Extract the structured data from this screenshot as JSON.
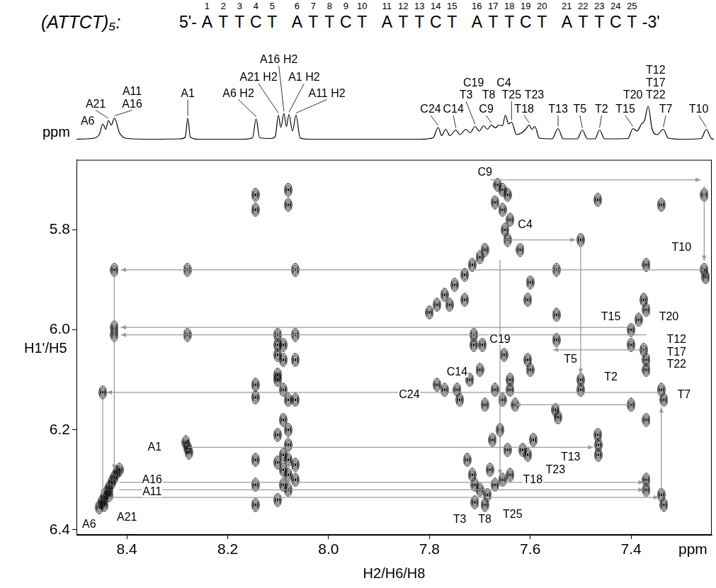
{
  "chart_data": [
    {
      "type": "line",
      "title": "(ATTCT)₅:",
      "sequence": {
        "prefix": "5'-",
        "groups": [
          "ATTCT",
          "ATTCT",
          "ATTCT",
          "ATTCT",
          "ATTCT"
        ],
        "suffix": "-3'",
        "numbers": [
          1,
          2,
          3,
          4,
          5,
          6,
          7,
          8,
          9,
          10,
          11,
          12,
          13,
          14,
          15,
          16,
          17,
          18,
          19,
          20,
          21,
          22,
          23,
          24,
          25
        ]
      },
      "xlabel": "ppm",
      "x": [
        8.5,
        8.47,
        8.455,
        8.448,
        8.442,
        8.437,
        8.431,
        8.425,
        8.415,
        8.4,
        8.35,
        8.295,
        8.285,
        8.28,
        8.275,
        8.26,
        8.17,
        8.152,
        8.145,
        8.138,
        8.115,
        8.107,
        8.101,
        8.096,
        8.09,
        8.085,
        8.08,
        8.073,
        8.066,
        8.058,
        8.04,
        7.82,
        7.795,
        7.785,
        7.778,
        7.77,
        7.762,
        7.75,
        7.742,
        7.73,
        7.722,
        7.712,
        7.704,
        7.695,
        7.688,
        7.68,
        7.672,
        7.665,
        7.658,
        7.652,
        7.646,
        7.64,
        7.63,
        7.62,
        7.612,
        7.605,
        7.6,
        7.594,
        7.585,
        7.56,
        7.548,
        7.538,
        7.51,
        7.5,
        7.49,
        7.475,
        7.466,
        7.456,
        7.41,
        7.4,
        7.392,
        7.383,
        7.377,
        7.37,
        7.362,
        7.352,
        7.34,
        7.33,
        7.3,
        7.265,
        7.255,
        7.245,
        7.24
      ],
      "values": [
        0.02,
        0.04,
        0.15,
        0.45,
        0.3,
        0.55,
        0.42,
        0.62,
        0.2,
        0.04,
        0.02,
        0.03,
        0.08,
        0.62,
        0.08,
        0.02,
        0.02,
        0.06,
        0.6,
        0.06,
        0.04,
        0.1,
        0.7,
        0.35,
        0.75,
        0.38,
        0.72,
        0.25,
        0.7,
        0.06,
        0.02,
        0.02,
        0.06,
        0.35,
        0.12,
        0.3,
        0.12,
        0.28,
        0.15,
        0.3,
        0.2,
        0.38,
        0.25,
        0.4,
        0.3,
        0.42,
        0.34,
        0.42,
        0.4,
        0.7,
        0.45,
        0.5,
        0.15,
        0.2,
        0.3,
        0.42,
        0.3,
        0.38,
        0.05,
        0.03,
        0.32,
        0.03,
        0.03,
        0.28,
        0.03,
        0.03,
        0.28,
        0.03,
        0.04,
        0.32,
        0.25,
        0.45,
        0.55,
        0.95,
        0.3,
        0.15,
        0.3,
        0.05,
        0.02,
        0.04,
        0.3,
        0.04,
        0.02
      ],
      "color": "#000000",
      "xlim": [
        8.5,
        7.24
      ],
      "ylim": [
        -0.05,
        2.75
      ],
      "tick_labels": false,
      "grid": false,
      "annotations": [
        {
          "text": "A6",
          "x": 8.478,
          "y": 0.52,
          "peak": 8.448
        },
        {
          "text": "A21",
          "x": 8.462,
          "y": 1.0,
          "peak": 8.437
        },
        {
          "text": "A16",
          "x": 8.39,
          "y": 1.0,
          "peak": 8.425
        },
        {
          "text": "A11",
          "x": 8.39,
          "y": 1.35,
          "peak": 8.425
        },
        {
          "text": "A1",
          "x": 8.28,
          "y": 1.3,
          "peak": 8.28
        },
        {
          "text": "A6 H2",
          "x": 8.18,
          "y": 1.3,
          "peak": 8.145
        },
        {
          "text": "A21 H2",
          "x": 8.14,
          "y": 1.75,
          "peak": 8.101
        },
        {
          "text": "A16 H2",
          "x": 8.1,
          "y": 2.25,
          "peak": 8.09
        },
        {
          "text": "A1 H2",
          "x": 8.05,
          "y": 1.75,
          "peak": 8.08
        },
        {
          "text": "A11 H2",
          "x": 8.005,
          "y": 1.3,
          "peak": 8.066
        },
        {
          "text": "C24",
          "x": 7.8,
          "y": 0.85,
          "peak": 7.785
        },
        {
          "text": "C14",
          "x": 7.755,
          "y": 0.85,
          "peak": 7.75
        },
        {
          "text": "C19",
          "x": 7.715,
          "y": 1.6,
          "peak": 7.712
        },
        {
          "text": "T3",
          "x": 7.73,
          "y": 1.25,
          "peak": 7.712
        },
        {
          "text": "T8",
          "x": 7.685,
          "y": 1.25,
          "peak": 7.695
        },
        {
          "text": "C9",
          "x": 7.69,
          "y": 0.85,
          "peak": 7.68
        },
        {
          "text": "C4",
          "x": 7.655,
          "y": 1.6,
          "peak": 7.652
        },
        {
          "text": "T25",
          "x": 7.64,
          "y": 1.25,
          "peak": 7.64
        },
        {
          "text": "T18",
          "x": 7.615,
          "y": 0.85,
          "peak": 7.605
        },
        {
          "text": "T23",
          "x": 7.595,
          "y": 1.25,
          "peak": 7.594
        },
        {
          "text": "T13",
          "x": 7.548,
          "y": 0.85,
          "peak": 7.548
        },
        {
          "text": "T5",
          "x": 7.505,
          "y": 0.85,
          "peak": 7.5
        },
        {
          "text": "T2",
          "x": 7.462,
          "y": 0.85,
          "peak": 7.466
        },
        {
          "text": "T15",
          "x": 7.415,
          "y": 0.85,
          "peak": 7.4
        },
        {
          "text": "T20",
          "x": 7.4,
          "y": 1.25,
          "peak": 7.383
        },
        {
          "text": "T22",
          "x": 7.355,
          "y": 1.25,
          "peak": 7.37
        },
        {
          "text": "T17",
          "x": 7.355,
          "y": 1.6,
          "peak": 7.37
        },
        {
          "text": "T12",
          "x": 7.355,
          "y": 1.95,
          "peak": 7.37
        },
        {
          "text": "T7",
          "x": 7.335,
          "y": 0.85,
          "peak": 7.34
        },
        {
          "text": "T10",
          "x": 7.27,
          "y": 0.85,
          "peak": 7.255
        }
      ]
    },
    {
      "type": "scatter",
      "xlabel": "H2/H6/H8",
      "x_unit": "ppm",
      "ylabel": "H1'/H5",
      "x": [
        8.425,
        8.425,
        8.425,
        8.448,
        8.28,
        8.28,
        8.283,
        8.28,
        8.277,
        8.455,
        8.45,
        8.445,
        8.44,
        8.435,
        8.43,
        8.425,
        8.42,
        8.415,
        8.445,
        8.435,
        8.145,
        8.145,
        8.145,
        8.145,
        8.145,
        8.145,
        8.145,
        8.101,
        8.101,
        8.101,
        8.101,
        8.101,
        8.101,
        8.101,
        8.101,
        8.09,
        8.09,
        8.09,
        8.09,
        8.09,
        8.09,
        8.09,
        8.08,
        8.08,
        8.08,
        8.08,
        8.08,
        8.08,
        8.08,
        8.08,
        8.066,
        8.066,
        8.066,
        8.066,
        8.066,
        8.066,
        7.665,
        7.655,
        7.645,
        7.67,
        7.655,
        7.64,
        7.65,
        7.645,
        7.69,
        7.7,
        7.715,
        7.73,
        7.75,
        7.77,
        7.785,
        7.8,
        7.76,
        7.73,
        7.785,
        7.77,
        7.745,
        7.74,
        7.72,
        7.712,
        7.712,
        7.695,
        7.7,
        7.69,
        7.67,
        7.655,
        7.64,
        7.63,
        7.66,
        7.675,
        7.645,
        7.71,
        7.7,
        7.685,
        7.67,
        7.655,
        7.64,
        7.68,
        7.715,
        7.725,
        7.69,
        7.71,
        7.652,
        7.64,
        7.605,
        7.605,
        7.6,
        7.594,
        7.605,
        7.615,
        7.62,
        7.6,
        7.548,
        7.548,
        7.548,
        7.55,
        7.545,
        7.5,
        7.5,
        7.5,
        7.466,
        7.466,
        7.465,
        7.465,
        7.4,
        7.4,
        7.4,
        7.385,
        7.37,
        7.375,
        7.37,
        7.375,
        7.37,
        7.37,
        7.37,
        7.37,
        7.37,
        7.34,
        7.34,
        7.335,
        7.34,
        7.335,
        7.255,
        7.255,
        7.252
      ],
      "values": [
        5.88,
        5.995,
        6.01,
        6.125,
        5.88,
        6.01,
        6.225,
        6.235,
        6.245,
        6.355,
        6.345,
        6.335,
        6.325,
        6.315,
        6.305,
        6.295,
        6.285,
        6.28,
        6.35,
        6.33,
        5.73,
        5.76,
        6.11,
        6.135,
        6.26,
        6.31,
        6.35,
        6.01,
        6.03,
        6.05,
        6.09,
        6.1,
        6.21,
        6.265,
        6.34,
        6.03,
        6.06,
        6.12,
        6.18,
        6.25,
        6.28,
        6.31,
        5.72,
        5.75,
        6.14,
        6.2,
        6.23,
        6.26,
        6.29,
        6.32,
        5.88,
        6.01,
        6.06,
        6.14,
        6.27,
        6.3,
        5.71,
        5.72,
        5.73,
        5.745,
        5.76,
        5.78,
        5.8,
        5.82,
        5.84,
        5.855,
        5.87,
        5.89,
        5.91,
        5.93,
        5.95,
        5.965,
        5.95,
        5.94,
        6.11,
        6.12,
        6.12,
        6.14,
        6.1,
        6.03,
        6.01,
        6.03,
        6.08,
        6.15,
        6.12,
        6.14,
        6.12,
        6.15,
        6.2,
        6.22,
        6.24,
        6.31,
        6.32,
        6.33,
        6.31,
        6.3,
        6.29,
        6.28,
        6.29,
        6.26,
        6.35,
        6.345,
        6.05,
        6.1,
        5.94,
        6.06,
        6.08,
        6.22,
        6.25,
        6.24,
        5.84,
        5.905,
        5.88,
        5.97,
        6.02,
        6.16,
        6.175,
        5.82,
        6.1,
        6.12,
        5.74,
        6.21,
        6.23,
        6.25,
        6.0,
        6.03,
        6.15,
        5.98,
        5.87,
        5.94,
        5.96,
        6.04,
        6.06,
        6.08,
        6.18,
        6.3,
        6.32,
        5.75,
        6.12,
        6.14,
        6.33,
        6.35,
        5.73,
        5.88,
        5.895
      ],
      "color": "#000000",
      "marker": "contour",
      "xlim": [
        8.5,
        7.24
      ],
      "ylim": [
        6.41,
        5.66
      ],
      "xticks": [
        8.4,
        8.2,
        {
          "value": 8,
          "label": "8.0"
        },
        7.8,
        7.6,
        7.4
      ],
      "yticks": [
        5.8,
        {
          "value": 6,
          "label": "6.0"
        },
        6.2,
        6.4
      ],
      "grid": false,
      "annotations": [
        {
          "text": "C9",
          "x": 7.69,
          "y": 5.685
        },
        {
          "text": "C4",
          "x": 7.61,
          "y": 5.79
        },
        {
          "text": "T10",
          "x": 7.3,
          "y": 5.835
        },
        {
          "text": "T20",
          "x": 7.325,
          "y": 5.975
        },
        {
          "text": "T15",
          "x": 7.44,
          "y": 5.975
        },
        {
          "text": "T12",
          "x": 7.31,
          "y": 6.02
        },
        {
          "text": "T17",
          "x": 7.31,
          "y": 6.045
        },
        {
          "text": "T22",
          "x": 7.31,
          "y": 6.07
        },
        {
          "text": "T5",
          "x": 7.52,
          "y": 6.06
        },
        {
          "text": "T2",
          "x": 7.44,
          "y": 6.095
        },
        {
          "text": "T7",
          "x": 7.295,
          "y": 6.13
        },
        {
          "text": "C19",
          "x": 7.66,
          "y": 6.02
        },
        {
          "text": "C24",
          "x": 7.84,
          "y": 6.13
        },
        {
          "text": "C14",
          "x": 7.745,
          "y": 6.085
        },
        {
          "text": "T13",
          "x": 7.52,
          "y": 6.255
        },
        {
          "text": "T23",
          "x": 7.55,
          "y": 6.28
        },
        {
          "text": "T18",
          "x": 7.595,
          "y": 6.3
        },
        {
          "text": "T25",
          "x": 7.635,
          "y": 6.37
        },
        {
          "text": "T3",
          "x": 7.74,
          "y": 6.38
        },
        {
          "text": "T8",
          "x": 7.69,
          "y": 6.38
        },
        {
          "text": "A1",
          "x": 8.345,
          "y": 6.235
        },
        {
          "text": "A16",
          "x": 8.35,
          "y": 6.3
        },
        {
          "text": "A11",
          "x": 8.35,
          "y": 6.325
        },
        {
          "text": "A21",
          "x": 8.4,
          "y": 6.375
        },
        {
          "text": "A6",
          "x": 8.475,
          "y": 6.39
        }
      ],
      "arrows": [
        {
          "from": [
            7.68,
            5.7
          ],
          "to": [
            7.262,
            5.7
          ]
        },
        {
          "from": [
            7.255,
            5.712
          ],
          "to": [
            7.255,
            5.862
          ]
        },
        {
          "from": [
            7.255,
            5.88
          ],
          "to": [
            8.412,
            5.88
          ]
        },
        {
          "from": [
            7.652,
            5.82
          ],
          "to": [
            7.51,
            5.82
          ]
        },
        {
          "from": [
            7.5,
            5.832
          ],
          "to": [
            7.5,
            6.088
          ]
        },
        {
          "from": [
            7.4,
            5.995
          ],
          "to": [
            8.412,
            5.995
          ]
        },
        {
          "from": [
            7.37,
            6.01
          ],
          "to": [
            8.412,
            6.01
          ]
        },
        {
          "from": [
            7.37,
            6.04
          ],
          "to": [
            7.555,
            6.04
          ]
        },
        {
          "from": [
            7.335,
            6.125
          ],
          "to": [
            8.44,
            6.125
          ]
        },
        {
          "from": [
            7.4,
            6.15
          ],
          "to": [
            7.63,
            6.15
          ]
        },
        {
          "from": [
            8.28,
            6.235
          ],
          "to": [
            7.475,
            6.235
          ]
        },
        {
          "from": [
            8.415,
            6.305
          ],
          "to": [
            7.375,
            6.305
          ]
        },
        {
          "from": [
            8.415,
            6.32
          ],
          "to": [
            7.375,
            6.32
          ]
        },
        {
          "from": [
            8.43,
            6.335
          ],
          "to": [
            7.345,
            6.335
          ]
        },
        {
          "from": [
            8.448,
            6.135
          ],
          "to": [
            8.448,
            6.33
          ]
        },
        {
          "from": [
            8.425,
            5.895
          ],
          "to": [
            8.425,
            6.28
          ]
        },
        {
          "from": [
            7.34,
            6.32
          ],
          "to": [
            7.34,
            6.155
          ]
        },
        {
          "from": [
            7.66,
            5.86
          ],
          "to": [
            7.66,
            6.29
          ]
        }
      ]
    }
  ]
}
